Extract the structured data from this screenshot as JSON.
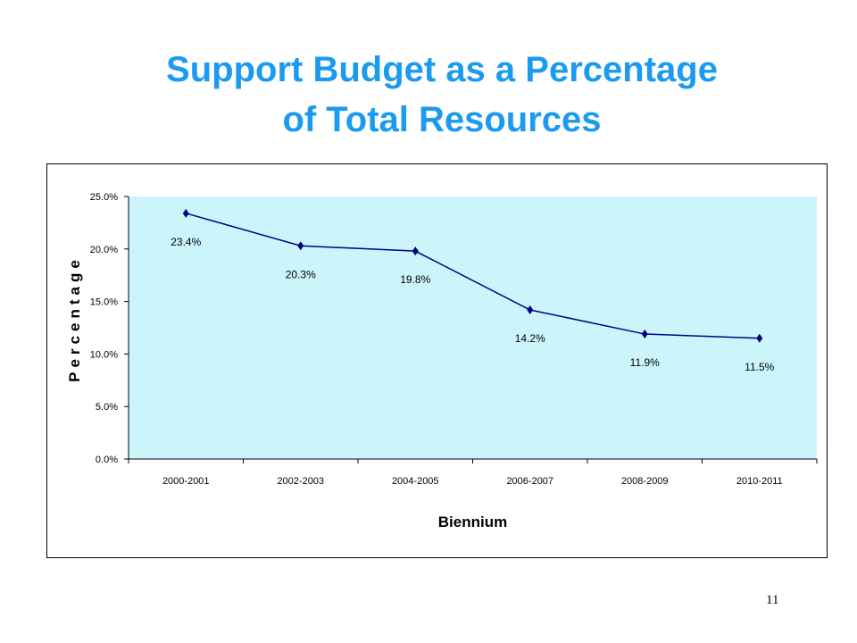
{
  "slide": {
    "title_line1": "Support Budget as a Percentage",
    "title_line2": "of Total Resources",
    "page_number": "11"
  },
  "colors": {
    "title": "#1a9bf0",
    "plot_background": "#ccf5fb",
    "line": "#000080",
    "marker": "#000080"
  },
  "chart_data": {
    "type": "line",
    "title": "",
    "xlabel": "Biennium",
    "ylabel": "Percentage",
    "categories": [
      "2000-2001",
      "2002-2003",
      "2004-2005",
      "2006-2007",
      "2008-2009",
      "2010-2011"
    ],
    "series": [
      {
        "values": [
          23.4,
          20.3,
          19.8,
          14.2,
          11.9,
          11.5
        ],
        "data_labels": [
          "23.4%",
          "20.3%",
          "19.8%",
          "14.2%",
          "11.9%",
          "11.5%"
        ],
        "marker": "diamond"
      }
    ],
    "ylim": [
      0,
      25
    ],
    "yticks": [
      0,
      5,
      10,
      15,
      20,
      25
    ],
    "ytick_labels": [
      "0.0%",
      "5.0%",
      "10.0%",
      "15.0%",
      "20.0%",
      "25.0%"
    ],
    "grid": false,
    "legend": "none"
  }
}
